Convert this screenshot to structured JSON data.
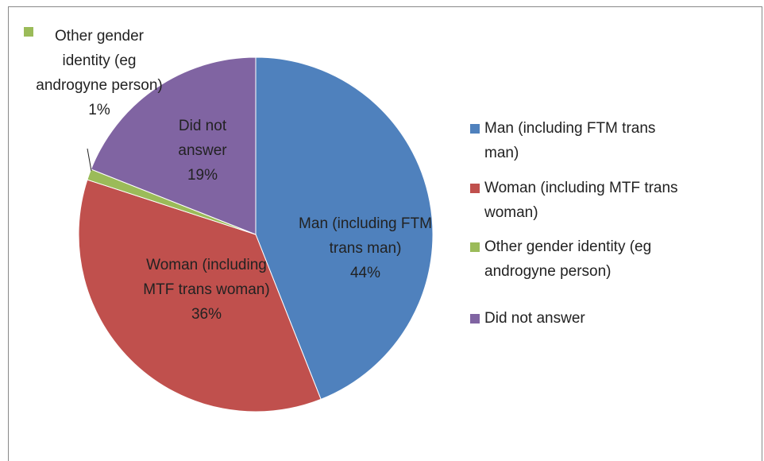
{
  "chart_data": {
    "type": "pie",
    "categories": [
      "Man (including FTM trans man)",
      "Woman (including MTF trans woman)",
      "Other gender identity (eg androgyne person)",
      "Did not answer"
    ],
    "values": [
      44,
      36,
      1,
      19
    ],
    "value_labels": [
      "44%",
      "36%",
      "1%",
      "19%"
    ],
    "colors": [
      "#4f81bd",
      "#c0504d",
      "#9bbb59",
      "#8064a2"
    ],
    "legend": "right"
  }
}
